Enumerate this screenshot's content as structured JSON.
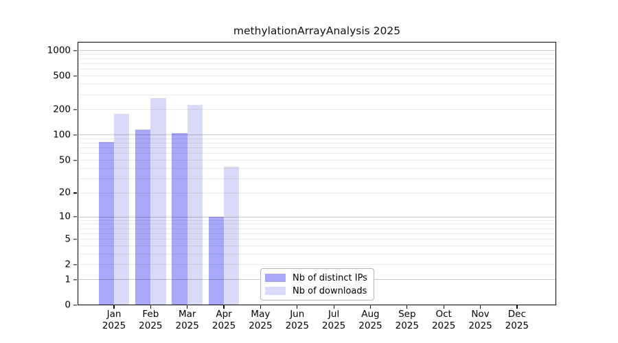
{
  "chart_data": {
    "type": "bar",
    "title": "methylationArrayAnalysis 2025",
    "year_label": "2025",
    "categories": [
      "Jan",
      "Feb",
      "Mar",
      "Apr",
      "May",
      "Jun",
      "Jul",
      "Aug",
      "Sep",
      "Oct",
      "Nov",
      "Dec"
    ],
    "series": [
      {
        "name": "Nb of distinct IPs",
        "color": "#a8a8f8",
        "values": [
          82,
          117,
          105,
          10,
          0,
          0,
          0,
          0,
          0,
          0,
          0,
          0
        ]
      },
      {
        "name": "Nb of downloads",
        "color": "#d9d9f8",
        "values": [
          177,
          276,
          229,
          42,
          0,
          0,
          0,
          0,
          0,
          0,
          0,
          0
        ]
      }
    ],
    "y_ticks": [
      1000,
      500,
      200,
      100,
      50,
      20,
      10,
      5,
      2,
      1,
      0
    ],
    "y_scale": "log10(1+x)",
    "ylim": [
      0,
      1265
    ],
    "grid": "horizontal log minor+major",
    "legend_position": "inside-bottom-center",
    "colors": {
      "frame": "#000000",
      "grid_minor": "#ebebeb",
      "grid_major": "#c9c9c9"
    }
  }
}
